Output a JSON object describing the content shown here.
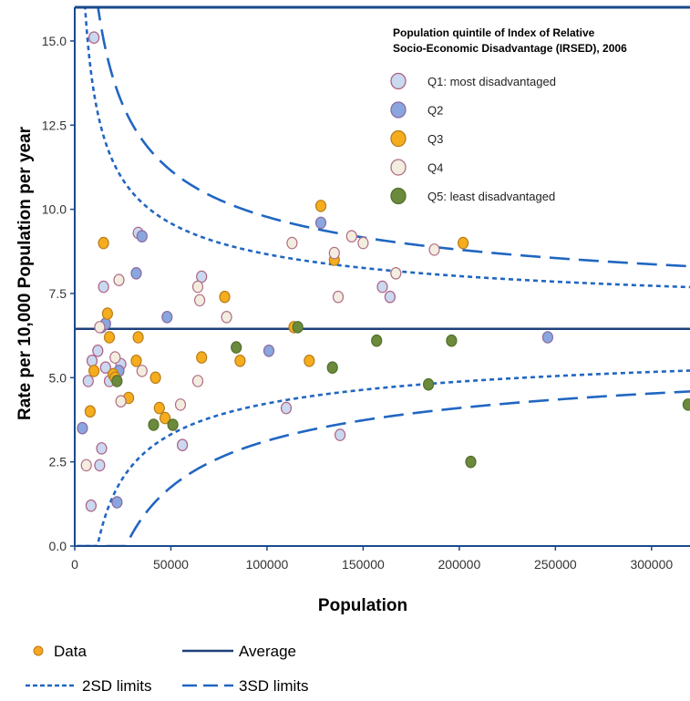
{
  "chart_data": {
    "type": "scatter",
    "xlabel": "Population",
    "ylabel": "Rate per 10,000 Population per year",
    "xlim": [
      0,
      320000
    ],
    "ylim": [
      0,
      16
    ],
    "xticks": [
      0,
      50000,
      100000,
      150000,
      200000,
      250000,
      300000
    ],
    "xtick_labels": [
      "0",
      "50000",
      "100000",
      "150000",
      "200000",
      "250000",
      "300000"
    ],
    "yticks": [
      0,
      2.5,
      5,
      7.5,
      10,
      12.5,
      15
    ],
    "ytick_labels": [
      "0.0",
      "2.5",
      "5.0",
      "7.5",
      "10.0",
      "12.5",
      "15.0"
    ],
    "legend_title": "Population quintile of Index of Relative Socio-Economic Disadvantage (IRSED), 2006",
    "legend_title_lines": [
      "Population quintile of Index of Relative",
      "Socio-Economic Disadvantage (IRSED), 2006"
    ],
    "legend_position": "top-right",
    "average": 6.45,
    "limit_curves": [
      {
        "name": "2SD limits",
        "sd": 2,
        "k": 2.76,
        "style": "dotted"
      },
      {
        "name": "3SD limits",
        "sd": 3,
        "k": 4.14,
        "style": "dashed"
      }
    ],
    "bottom_legend": [
      {
        "label": "Data",
        "symbol": "dot"
      },
      {
        "label": "Average",
        "symbol": "solid"
      },
      {
        "label": "2SD limits",
        "symbol": "dotted"
      },
      {
        "label": "3SD limits",
        "symbol": "dashed"
      }
    ],
    "series": [
      {
        "name": "Q1: most disadvantaged",
        "fill": "#c9d9ef",
        "stroke": "#b05f85",
        "points": [
          [
            10000,
            15.1
          ],
          [
            7000,
            4.9
          ],
          [
            8500,
            1.2
          ],
          [
            9000,
            5.5
          ],
          [
            12000,
            5.8
          ],
          [
            13000,
            2.4
          ],
          [
            14000,
            2.9
          ],
          [
            15000,
            7.7
          ],
          [
            16000,
            5.3
          ],
          [
            18000,
            4.9
          ],
          [
            20000,
            5.1
          ],
          [
            24000,
            5.4
          ],
          [
            33000,
            9.3
          ],
          [
            56000,
            3.0
          ],
          [
            66000,
            8.0
          ],
          [
            110000,
            4.1
          ],
          [
            138000,
            3.3
          ],
          [
            160000,
            7.7
          ],
          [
            164000,
            7.4
          ]
        ]
      },
      {
        "name": "Q2",
        "fill": "#8aa6de",
        "stroke": "#8b6aa0",
        "points": [
          [
            4000,
            3.5
          ],
          [
            14000,
            6.5
          ],
          [
            16000,
            6.6
          ],
          [
            22000,
            1.3
          ],
          [
            23000,
            5.2
          ],
          [
            32000,
            8.1
          ],
          [
            35000,
            9.2
          ],
          [
            48000,
            6.8
          ],
          [
            101000,
            5.8
          ],
          [
            128000,
            9.6
          ],
          [
            246000,
            6.2
          ]
        ]
      },
      {
        "name": "Q3",
        "fill": "#f5ad1e",
        "stroke": "#b87d1a",
        "points": [
          [
            8000,
            4.0
          ],
          [
            10000,
            5.2
          ],
          [
            15000,
            9.0
          ],
          [
            17000,
            6.9
          ],
          [
            18000,
            6.2
          ],
          [
            20000,
            5.1
          ],
          [
            21000,
            5.0
          ],
          [
            28000,
            4.4
          ],
          [
            32000,
            5.5
          ],
          [
            33000,
            6.2
          ],
          [
            42000,
            5.0
          ],
          [
            44000,
            4.1
          ],
          [
            47000,
            3.8
          ],
          [
            66000,
            5.6
          ],
          [
            78000,
            7.4
          ],
          [
            86000,
            5.5
          ],
          [
            114000,
            6.5
          ],
          [
            122000,
            5.5
          ],
          [
            128000,
            10.1
          ],
          [
            135000,
            8.5
          ],
          [
            202000,
            9.0
          ]
        ]
      },
      {
        "name": "Q4",
        "fill": "#f3ede0",
        "stroke": "#b06e85",
        "points": [
          [
            6000,
            2.4
          ],
          [
            13000,
            6.5
          ],
          [
            21000,
            5.6
          ],
          [
            23000,
            7.9
          ],
          [
            24000,
            4.3
          ],
          [
            35000,
            5.2
          ],
          [
            55000,
            4.2
          ],
          [
            64000,
            7.7
          ],
          [
            64000,
            4.9
          ],
          [
            65000,
            7.3
          ],
          [
            79000,
            6.8
          ],
          [
            113000,
            9.0
          ],
          [
            135000,
            8.7
          ],
          [
            137000,
            7.4
          ],
          [
            144000,
            9.2
          ],
          [
            150000,
            9.0
          ],
          [
            167000,
            8.1
          ],
          [
            187000,
            8.8
          ]
        ]
      },
      {
        "name": "Q5: least disadvantaged",
        "fill": "#6b8a3c",
        "stroke": "#52702b",
        "points": [
          [
            22000,
            4.9
          ],
          [
            41000,
            3.6
          ],
          [
            51000,
            3.6
          ],
          [
            84000,
            5.9
          ],
          [
            116000,
            6.5
          ],
          [
            134000,
            5.3
          ],
          [
            157000,
            6.1
          ],
          [
            184000,
            4.8
          ],
          [
            196000,
            6.1
          ],
          [
            206000,
            2.5
          ],
          [
            319000,
            4.2
          ]
        ]
      }
    ]
  },
  "colors": {
    "axis": "#1a4a8c",
    "average_line": "#1f3f7a",
    "limit_lines": "#2166c2",
    "data_marker": "#f5a623"
  }
}
